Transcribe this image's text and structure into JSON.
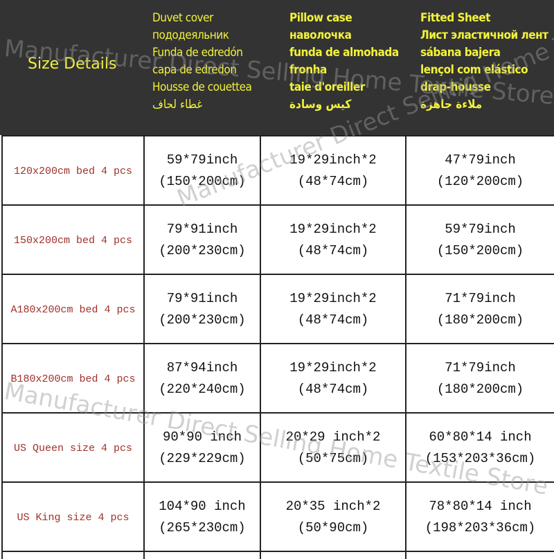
{
  "header": {
    "size_title": "Size Details",
    "columns": [
      {
        "lines": [
          "Duvet cover",
          "пододеяльник",
          "Funda de edredón",
          "capa de edredon",
          "Housse de couettea",
          "غطاء لحاف"
        ]
      },
      {
        "lines": [
          "Pillow case",
          "наволочка",
          "funda de almohada",
          "fronha",
          "taie d'oreiller",
          "كيس وسادة"
        ]
      },
      {
        "lines": [
          "Fitted Sheet",
          "Лист эластичной лент",
          "sábana bajera",
          "lençol com elástico",
          "drap-housse",
          "ملاءة جاهزة"
        ]
      }
    ]
  },
  "rows": [
    {
      "size": "120x200cm bed 4 pcs",
      "duvet": [
        "59*79inch",
        "(150*200cm)"
      ],
      "pillow": [
        "19*29inch*2",
        "(48*74cm)"
      ],
      "sheet": [
        "47*79inch",
        "(120*200cm)"
      ]
    },
    {
      "size": "150x200cm bed 4 pcs",
      "duvet": [
        "79*91inch",
        "(200*230cm)"
      ],
      "pillow": [
        "19*29inch*2",
        "(48*74cm)"
      ],
      "sheet": [
        "59*79inch",
        "(150*200cm)"
      ]
    },
    {
      "size": "A180x200cm bed 4 pcs",
      "duvet": [
        "79*91inch",
        "(200*230cm)"
      ],
      "pillow": [
        "19*29inch*2",
        "(48*74cm)"
      ],
      "sheet": [
        "71*79inch",
        "(180*200cm)"
      ]
    },
    {
      "size": "B180x200cm bed 4 pcs",
      "duvet": [
        "87*94inch",
        "(220*240cm)"
      ],
      "pillow": [
        "19*29inch*2",
        "(48*74cm)"
      ],
      "sheet": [
        "71*79inch",
        "(180*200cm)"
      ]
    },
    {
      "size": "US Queen size 4 pcs",
      "duvet": [
        "90*90 inch",
        "(229*229cm)"
      ],
      "pillow": [
        "20*29 inch*2",
        "(50*75cm)"
      ],
      "sheet": [
        "60*80*14 inch",
        "(153*203*36cm)"
      ]
    },
    {
      "size": "US King size 4 pcs",
      "duvet": [
        "104*90 inch",
        "(265*230cm)"
      ],
      "pillow": [
        "20*35 inch*2",
        "(50*90cm)"
      ],
      "sheet": [
        "78*80*14 inch",
        "(198*203*36cm)"
      ]
    }
  ],
  "watermark": "Manufacturer Direct Selling Home Textile Store",
  "colors": {
    "header_bg": "#333333",
    "header_text": "#f2f23a",
    "size_text": "#a0302a"
  }
}
